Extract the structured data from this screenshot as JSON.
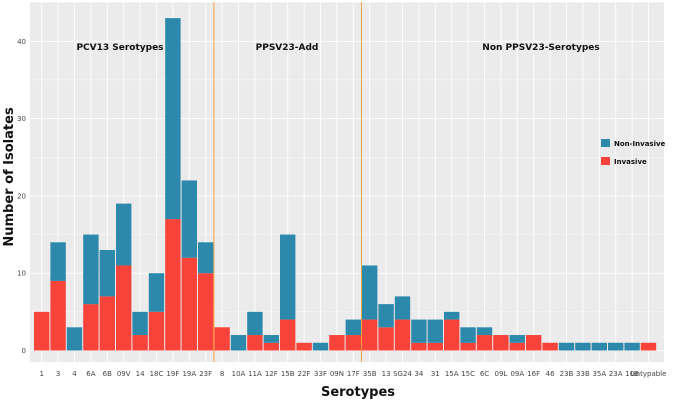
{
  "chart_data": {
    "type": "bar",
    "stacked": true,
    "xlabel": "Serotypes",
    "ylabel": "Number of Isolates",
    "ylim": [
      0,
      45
    ],
    "yticks": [
      0,
      10,
      20,
      30,
      40
    ],
    "grid": true,
    "categories": [
      "1",
      "3",
      "4",
      "6A",
      "6B",
      "09V",
      "14",
      "18C",
      "19F",
      "19A",
      "23F",
      "8",
      "10A",
      "11A",
      "12F",
      "15B",
      "22F",
      "33F",
      "09N",
      "17F",
      "35B",
      "13",
      "SG24",
      "34",
      "31",
      "15A",
      "15C",
      "6C",
      "09L",
      "09A",
      "16F",
      "46",
      "23B",
      "33B",
      "35A",
      "23A",
      "10B",
      "Untypable"
    ],
    "series": [
      {
        "name": "Invasive",
        "color": "#f8433a",
        "values": [
          5,
          9,
          0,
          6,
          7,
          11,
          2,
          5,
          17,
          12,
          10,
          3,
          0,
          2,
          1,
          4,
          1,
          0,
          2,
          2,
          4,
          3,
          4,
          1,
          1,
          4,
          1,
          2,
          2,
          1,
          2,
          1,
          0,
          0,
          0,
          0,
          0,
          1
        ]
      },
      {
        "name": "Non-Invasive",
        "color": "#2c89ab",
        "values": [
          0,
          5,
          3,
          9,
          6,
          8,
          3,
          5,
          26,
          10,
          4,
          0,
          2,
          3,
          1,
          11,
          0,
          1,
          0,
          2,
          7,
          3,
          3,
          3,
          3,
          1,
          2,
          1,
          0,
          1,
          0,
          0,
          1,
          1,
          1,
          1,
          1,
          0
        ]
      }
    ],
    "legend": {
      "placement": "right",
      "entries": [
        "Non-Invasive",
        "Invasive"
      ]
    },
    "group_labels": [
      "PCV13 Serotypes",
      "PPSV23-Add",
      "Non PPSV23-Serotypes"
    ],
    "group_dividers_after": [
      "23F",
      "17F"
    ]
  }
}
